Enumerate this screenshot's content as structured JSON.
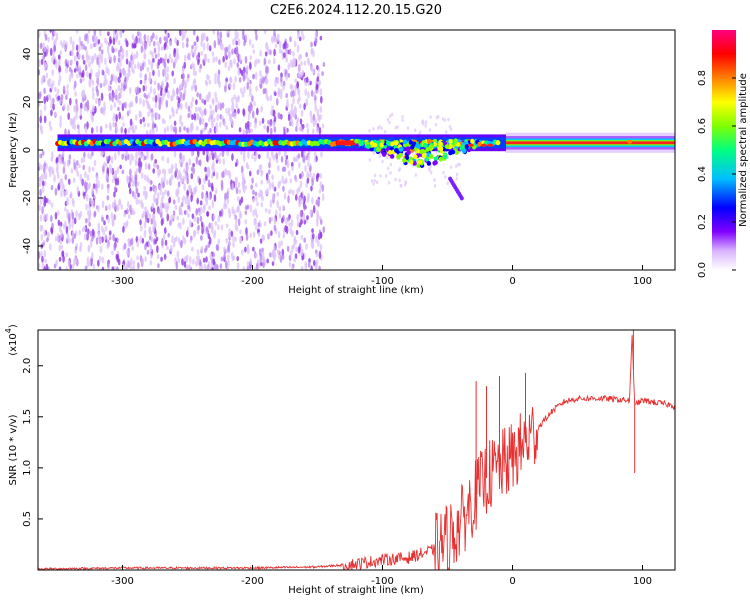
{
  "figure": {
    "title": "C2E6.2024.112.20.15.G20"
  },
  "chart_data": [
    {
      "type": "heatmap",
      "xlabel": "Height of straight line (km)",
      "ylabel": "Frequency (Hz)",
      "xlim": [
        -365,
        125
      ],
      "ylim": [
        -50,
        50
      ],
      "xticks": [
        "-300",
        "-200",
        "-100",
        "0",
        "100"
      ],
      "yticks": [
        "40",
        "20",
        "0",
        "-20",
        "-40"
      ],
      "colorbar": {
        "label": "Normalized spectral amplitude",
        "range": [
          0,
          1
        ],
        "ticks": [
          "0.0",
          "0.2",
          "0.4",
          "0.6",
          "0.8"
        ],
        "colormap": [
          "#ffffff",
          "#d9b3ff",
          "#8000ff",
          "#0000ff",
          "#00bfff",
          "#00ff80",
          "#80ff00",
          "#ffff00",
          "#ff8000",
          "#ff0000",
          "#ff0080"
        ]
      },
      "main_band": {
        "frequency_hz": 3,
        "extent_km": [
          -350,
          125
        ]
      },
      "noise_region_km": [
        -365,
        -145
      ],
      "dip": {
        "center_km": -70,
        "min_frequency_hz": -8,
        "tail_frequency_hz": -20
      }
    },
    {
      "type": "line",
      "xlabel": "Height of straight line (km)",
      "ylabel": "SNR (10 * v/v)",
      "y_multiplier": "(x10",
      "y_multiplier_exp": "4",
      "xlim": [
        -365,
        125
      ],
      "ylim": [
        0,
        2.35
      ],
      "xticks": [
        "-300",
        "-200",
        "-100",
        "0",
        "100"
      ],
      "yticks": [
        "0.5",
        "1.0",
        "1.5",
        "2.0"
      ],
      "series_color": "#e83030",
      "series": [
        {
          "x": [
            -365,
            -300,
            -250,
            -200,
            -150,
            -120,
            -100,
            -80,
            -60,
            -50,
            -40,
            -30,
            -20,
            -10,
            0,
            10,
            20,
            30,
            40,
            50,
            60,
            70,
            80,
            90,
            92,
            94,
            100,
            110,
            120,
            125
          ],
          "y": [
            0.01,
            0.02,
            0.02,
            0.02,
            0.03,
            0.06,
            0.1,
            0.12,
            0.2,
            0.3,
            0.45,
            0.7,
            0.9,
            1.0,
            1.1,
            1.25,
            1.4,
            1.55,
            1.65,
            1.68,
            1.68,
            1.68,
            1.67,
            1.66,
            2.3,
            1.62,
            1.66,
            1.64,
            1.62,
            1.6
          ]
        }
      ],
      "spikes": [
        {
          "x": -28,
          "y": 1.85
        },
        {
          "x": -20,
          "y": 1.8
        },
        {
          "x": -10,
          "y": 1.9
        },
        {
          "x": 10,
          "y": 1.93
        },
        {
          "x": 93,
          "y": 2.35
        },
        {
          "x": 94,
          "y": 0.95
        }
      ]
    }
  ]
}
